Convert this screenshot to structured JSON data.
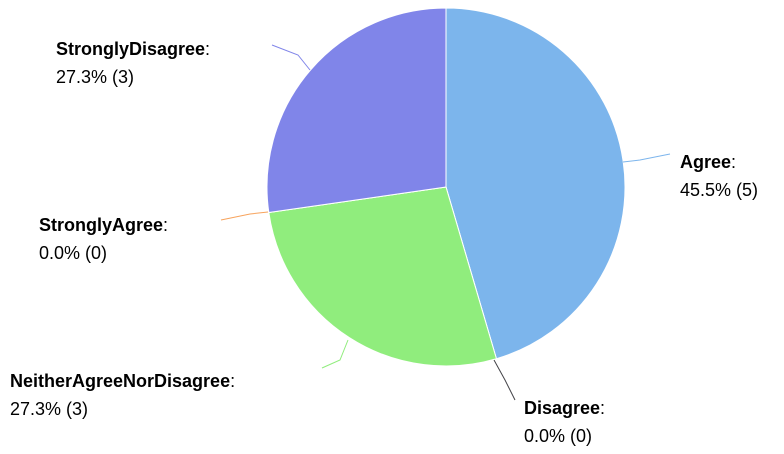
{
  "chart_data": {
    "type": "pie",
    "slices": [
      {
        "label": "Agree",
        "value": 5,
        "percent": "45.5%",
        "color": "#7cb5ec"
      },
      {
        "label": "Disagree",
        "value": 0,
        "percent": "0.0%",
        "color": "#434348"
      },
      {
        "label": "NeitherAgreeNorDisagree",
        "value": 3,
        "percent": "27.3%",
        "color": "#90ed7d"
      },
      {
        "label": "StronglyAgree",
        "value": 0,
        "percent": "0.0%",
        "color": "#f7a35c"
      },
      {
        "label": "StronglyDisagree",
        "value": 3,
        "percent": "27.3%",
        "color": "#8085e9"
      }
    ]
  }
}
